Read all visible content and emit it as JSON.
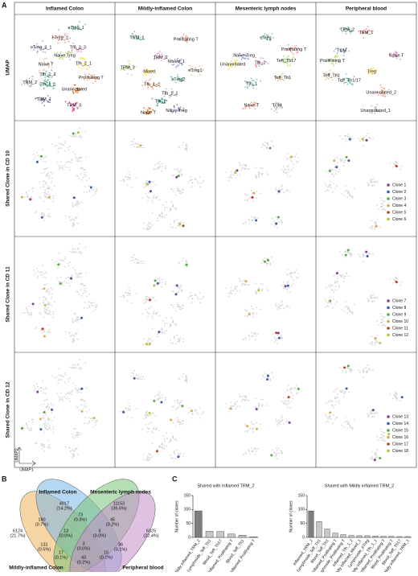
{
  "panel_a": {
    "letter": "A",
    "columns": [
      "Inflamed Colon",
      "Mildly-inflamed Colon",
      "Mesenteric lymph nodes",
      "Peripheral blood"
    ],
    "rows": [
      "UMAP",
      "Shared Clone in CD 10",
      "Shared Clone in CD 11",
      "Shared Clone in CD 12"
    ],
    "axis_x": "UMAP1",
    "axis_y": "UMAP2",
    "clusters": [
      [
        "eTreg_1",
        "eTreg_2",
        "eTreg_2_1",
        "Tfh_2_2",
        "Naive Treg",
        "Tfh_2_1",
        "Naive T",
        "Tfh_1_2",
        "Prolifrating T",
        "TRM_2",
        "Tfh_1_1",
        "Unannotated",
        "TRM_1",
        "TRM_3"
      ],
      [
        "TRM_1",
        "Prolifrating T",
        "Mixed_1",
        "TRM_2",
        "TRM_3",
        "Mixed",
        "eTreg1",
        "eTreg2",
        "Tfh_1_2",
        "Tfh_1_1",
        "Tfh_2",
        "Naive T",
        "Naive Treg"
      ],
      [
        "eTreg",
        "Prolifrating T",
        "Naive Treg",
        "Tfh_2",
        "Teff_Th17",
        "Unannotated",
        "Teff_Th1",
        "Tfh_1",
        "Naive T",
        "TCM"
      ],
      [
        "TEM_2",
        "TEM_1",
        "TCM",
        "Naive T",
        "Prolifrating T",
        "Treg",
        "Teff_Th1",
        "Teff_Th1/17",
        "Unannotated_2",
        "Unannotated_1"
      ]
    ],
    "clones": [
      [
        "Clone 1",
        "Clone 2",
        "Clone 3",
        "Clone 4",
        "Clone 5",
        "Clone 6"
      ],
      [
        "Clone 7",
        "Clone 8",
        "Clone 9",
        "Clone 10",
        "Clone 11",
        "Clone 12"
      ],
      [
        "Clone 13",
        "Clone 14",
        "Clone 15",
        "Clone 16",
        "Clone 17",
        "Clone 18"
      ]
    ]
  },
  "venn": {
    "letter": "B",
    "sets": [
      "Inflamed Colon",
      "Mesenteric lymph nodes",
      "Mildly-inflamed Colon",
      "Peripheral blood"
    ],
    "regions": [
      {
        "count": "4017",
        "percent": "(14.2%)"
      },
      {
        "count": "11153",
        "percent": "(39.6%)"
      },
      {
        "count": "6124",
        "percent": "(21.7%)"
      },
      {
        "count": "6325",
        "percent": "(22.4%)"
      },
      {
        "count": "180",
        "percent": "(0.7%)"
      },
      {
        "count": "73",
        "percent": "(0.3%)"
      },
      {
        "count": "45",
        "percent": "(0.2%)"
      },
      {
        "count": "13",
        "percent": "(0.0%)"
      },
      {
        "count": "6",
        "percent": "(0.0%)"
      },
      {
        "count": "131",
        "percent": "(0.5%)"
      },
      {
        "count": "3",
        "percent": "(0.0%)"
      },
      {
        "count": "36",
        "percent": "(0.1%)"
      },
      {
        "count": "17",
        "percent": "(0.1%)"
      },
      {
        "count": "15",
        "percent": "(0.1%)"
      },
      {
        "count": "43",
        "percent": "(0.2%)"
      }
    ]
  },
  "panel_c": {
    "letter": "C"
  },
  "chart_data": [
    {
      "type": "bar",
      "title": "Shared with Inflamed TRM_2",
      "ylabel": "Number of clones",
      "categories": [
        "Mildly inflamed_TRM_2",
        "Lymphnode_Teff_Th1",
        "Blood_Teff_Th17",
        "Inflamed_Prolifrating T",
        "Blood_Teff_Th1",
        "Mildly inflamed_Prolifrating T"
      ],
      "values": [
        95,
        22,
        21,
        12,
        8,
        2
      ],
      "colors": [
        "#7f7f7f",
        "#c8c8c8",
        "#c8c8c8",
        "#c8c8c8",
        "#c8c8c8",
        "#c8c8c8"
      ],
      "ylim": [
        0,
        150
      ],
      "yticks": [
        0,
        50,
        100,
        150
      ]
    },
    {
      "type": "bar",
      "title": "Shared with Mildly inflamed TRM_2",
      "ylabel": "Number of clones",
      "categories": [
        "Inflamed_TRM_2",
        "Lymphnode_Teff_Th1",
        "Blood_Teff_Th1",
        "Inflamed_Prolifrating T",
        "Lymphnode_Prolifrating T",
        "Inflamed_Tfh_1_2",
        "Mildly inflamed_Mixed_1",
        "Lymphnode_eTreg",
        "Mildly inflamed_Tfh_1_1",
        "Mildly inflamed_Prolifrating T",
        "Blood_Prolifrating T",
        "Blood_Teff_Th17",
        "Mildly inflamed_TRM_1"
      ],
      "values": [
        95,
        57,
        30,
        15,
        10,
        7,
        6,
        6,
        5,
        4,
        4,
        3,
        3
      ],
      "colors": [
        "#7f7f7f",
        "#c8c8c8",
        "#c8c8c8",
        "#c8c8c8",
        "#c8c8c8",
        "#c8c8c8",
        "#c8c8c8",
        "#c8c8c8",
        "#c8c8c8",
        "#c8c8c8",
        "#c8c8c8",
        "#c8c8c8",
        "#c8c8c8"
      ],
      "ylim": [
        0,
        150
      ],
      "yticks": [
        0,
        50,
        100,
        150
      ]
    }
  ]
}
